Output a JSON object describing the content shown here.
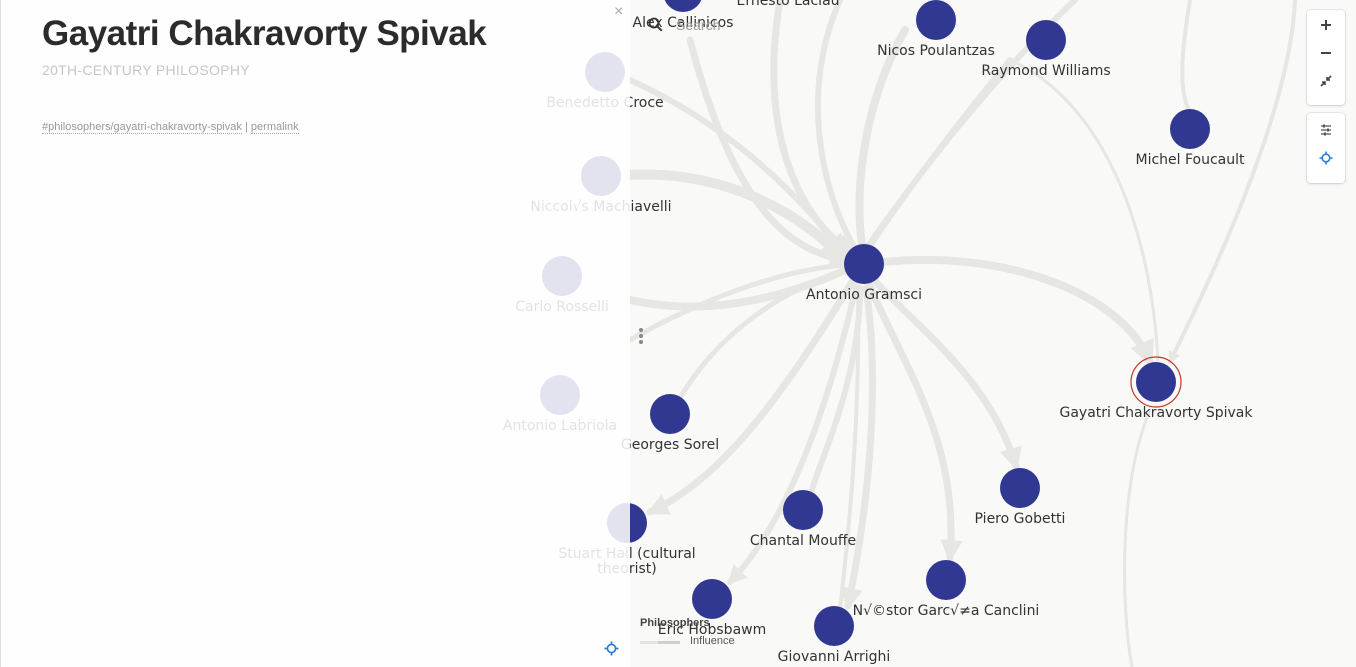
{
  "graph": {
    "accent": "#313891",
    "highlight": "#c0392b",
    "nodes": [
      {
        "id": "callinicos",
        "label": "Alex Callinicos"
      },
      {
        "id": "laclau",
        "label": "Ernesto Laclau"
      },
      {
        "id": "poulantzas",
        "label": "Nicos Poulantzas"
      },
      {
        "id": "williams",
        "label": "Raymond Williams"
      },
      {
        "id": "foucault",
        "label": "Michel Foucault"
      },
      {
        "id": "croce",
        "label": "Benedetto Croce"
      },
      {
        "id": "machiavelli",
        "label": "Niccol√s Machiavelli"
      },
      {
        "id": "gramsci",
        "label": "Antonio Gramsci"
      },
      {
        "id": "rosselli",
        "label": "Carlo Rosselli"
      },
      {
        "id": "spivak",
        "label": "Gayatri Chakravorty Spivak"
      },
      {
        "id": "labriola",
        "label": "Antonio Labriola"
      },
      {
        "id": "sorel",
        "label": "Georges Sorel"
      },
      {
        "id": "gobetti",
        "label": "Piero Gobetti"
      },
      {
        "id": "mouffe",
        "label": "Chantal Mouffe"
      },
      {
        "id": "hall",
        "label": "Stuart Hall (cultural\ntheorist)"
      },
      {
        "id": "canclini",
        "label": "N√©stor Garc√≠a Canclini"
      },
      {
        "id": "hobsbawm",
        "label": "Eric Hobsbawm"
      },
      {
        "id": "arrighi",
        "label": "Giovanni Arrighi"
      }
    ]
  },
  "panel": {
    "title": "Gayatri Chakravorty Spivak",
    "subtitle": "20TH-CENTURY PHILOSOPHY",
    "hash_link": "#philosophers/gayatri-chakravorty-spivak",
    "separator": "|",
    "permalink": "permalink",
    "close_glyph": "×"
  },
  "search": {
    "placeholder": "Search"
  },
  "toolbar": {
    "zoom_in_icon": "plus-icon",
    "zoom_out_icon": "minus-icon",
    "collapse_icon": "compress-icon",
    "settings_icon": "sliders-icon",
    "locate_icon": "crosshair-icon"
  },
  "legend": {
    "title": "Philosophers",
    "edge_label": "Influence"
  }
}
